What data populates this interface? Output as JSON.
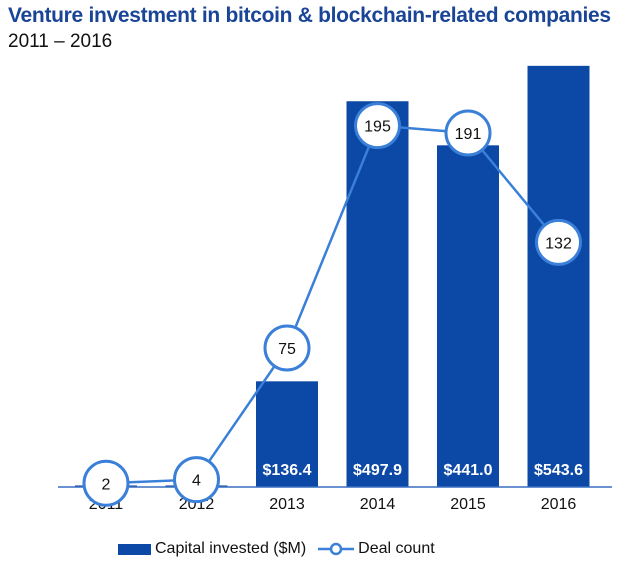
{
  "header": {
    "title": "Venture investment in bitcoin & blockchain-related companies",
    "subtitle": "2011 – 2016"
  },
  "legend": {
    "bar_label": "Capital invested ($M)",
    "line_label": "Deal count"
  },
  "colors": {
    "bar": "#0c48a6",
    "line": "#3a7fd8",
    "axis": "#3a6fc0"
  },
  "chart_data": {
    "type": "bar",
    "title": "Venture investment in bitcoin & blockchain-related companies",
    "subtitle": "2011 – 2016",
    "categories": [
      "2011",
      "2012",
      "2013",
      "2014",
      "2015",
      "2016"
    ],
    "series": [
      {
        "name": "Capital invested ($M)",
        "type": "bar",
        "values": [
          2,
          2,
          136.4,
          497.9,
          441.0,
          543.6
        ],
        "labels": [
          "",
          "",
          "$136.4",
          "$497.9",
          "$441.0",
          "$543.6"
        ]
      },
      {
        "name": "Deal count",
        "type": "line",
        "values": [
          2,
          4,
          75,
          195,
          191,
          132
        ]
      }
    ],
    "xlabel": "",
    "ylabel": "",
    "ylim_bar": [
      0,
      555
    ],
    "ylim_line": [
      0,
      232
    ],
    "grid": false,
    "legend_position": "bottom"
  }
}
